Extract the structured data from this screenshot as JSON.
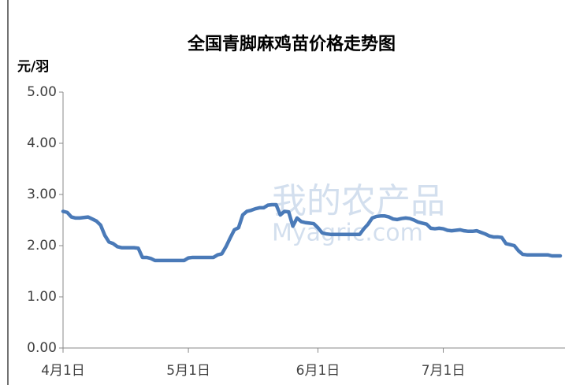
{
  "chart_data": {
    "type": "line",
    "title": "全国青脚麻鸡苗价格走势图",
    "y_label": "元/羽",
    "watermark": "我的农产品",
    "watermark_sub": "Myagric.com",
    "color": "#4a7ab8",
    "categories": [
      "4月1日",
      null,
      null,
      null,
      null,
      null,
      null,
      null,
      null,
      null,
      null,
      null,
      null,
      null,
      null,
      null,
      null,
      null,
      null,
      null,
      null,
      null,
      null,
      null,
      null,
      null,
      null,
      null,
      null,
      null,
      "5月1日",
      null,
      null,
      null,
      null,
      null,
      null,
      null,
      null,
      null,
      null,
      null,
      null,
      null,
      null,
      null,
      null,
      null,
      null,
      null,
      null,
      null,
      null,
      null,
      null,
      null,
      null,
      null,
      null,
      null,
      null,
      "6月1日",
      null,
      null,
      null,
      null,
      null,
      null,
      null,
      null,
      null,
      null,
      null,
      null,
      null,
      null,
      null,
      null,
      null,
      null,
      null,
      null,
      null,
      null,
      null,
      null,
      null,
      null,
      null,
      null,
      null,
      "7月1日",
      null,
      null,
      null,
      null,
      null,
      null,
      null,
      null,
      null,
      null,
      null,
      null,
      null,
      null,
      null,
      null,
      null,
      null,
      null,
      null,
      null,
      null,
      null,
      null,
      null,
      null,
      null,
      null
    ],
    "values": [
      2.67,
      2.65,
      2.56,
      2.54,
      2.54,
      2.55,
      2.56,
      2.52,
      2.48,
      2.4,
      2.2,
      2.07,
      2.04,
      1.98,
      1.96,
      1.96,
      1.96,
      1.96,
      1.95,
      1.77,
      1.77,
      1.75,
      1.71,
      1.71,
      1.71,
      1.71,
      1.71,
      1.71,
      1.71,
      1.71,
      1.76,
      1.77,
      1.77,
      1.77,
      1.77,
      1.77,
      1.77,
      1.82,
      1.84,
      1.98,
      2.15,
      2.31,
      2.35,
      2.6,
      2.67,
      2.69,
      2.72,
      2.74,
      2.74,
      2.79,
      2.8,
      2.8,
      2.6,
      2.67,
      2.66,
      2.38,
      2.54,
      2.47,
      2.45,
      2.44,
      2.43,
      2.35,
      2.25,
      2.23,
      2.22,
      2.22,
      2.22,
      2.22,
      2.22,
      2.22,
      2.22,
      2.22,
      2.33,
      2.42,
      2.54,
      2.57,
      2.58,
      2.58,
      2.56,
      2.52,
      2.51,
      2.53,
      2.54,
      2.53,
      2.5,
      2.46,
      2.44,
      2.42,
      2.34,
      2.33,
      2.34,
      2.33,
      2.3,
      2.29,
      2.3,
      2.31,
      2.29,
      2.28,
      2.28,
      2.29,
      2.26,
      2.23,
      2.19,
      2.17,
      2.17,
      2.16,
      2.04,
      2.02,
      2.0,
      1.9,
      1.83,
      1.82,
      1.82,
      1.82,
      1.82,
      1.82,
      1.82,
      1.8,
      1.8,
      1.8
    ],
    "ylim": [
      0,
      5
    ],
    "yticks": [
      {
        "value": 0,
        "label": "0.00"
      },
      {
        "value": 1,
        "label": "1.00"
      },
      {
        "value": 2,
        "label": "2.00"
      },
      {
        "value": 3,
        "label": "3.00"
      },
      {
        "value": 4,
        "label": "4.00"
      },
      {
        "value": 5,
        "label": "5.00"
      }
    ],
    "grid": false
  }
}
